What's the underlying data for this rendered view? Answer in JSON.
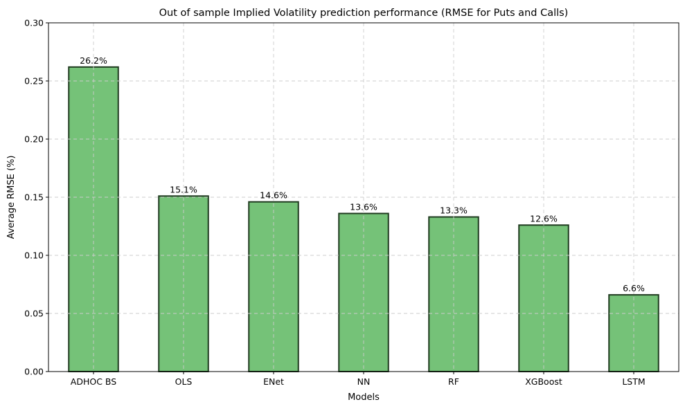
{
  "chart_data": {
    "type": "bar",
    "title": "Out of sample Implied Volatility prediction performance (RMSE for Puts and Calls)",
    "xlabel": "Models",
    "ylabel": "Average RMSE (%)",
    "categories": [
      "ADHOC BS",
      "OLS",
      "ENet",
      "NN",
      "RF",
      "XGBoost",
      "LSTM"
    ],
    "values": [
      0.262,
      0.151,
      0.146,
      0.136,
      0.133,
      0.126,
      0.066
    ],
    "data_labels": [
      "26.2%",
      "15.1%",
      "14.6%",
      "13.6%",
      "13.3%",
      "12.6%",
      "6.6%"
    ],
    "ylim": [
      0,
      0.3
    ],
    "yticks": [
      0.0,
      0.05,
      0.1,
      0.15,
      0.2,
      0.25,
      0.3
    ],
    "ytick_labels": [
      "0.00",
      "0.05",
      "0.10",
      "0.15",
      "0.20",
      "0.25",
      "0.30"
    ],
    "grid": true,
    "legend": "none",
    "colors": {
      "bar_fill": "#4caf50",
      "bar_edge": "#1f3a1f",
      "grid": "#cccccc"
    }
  }
}
